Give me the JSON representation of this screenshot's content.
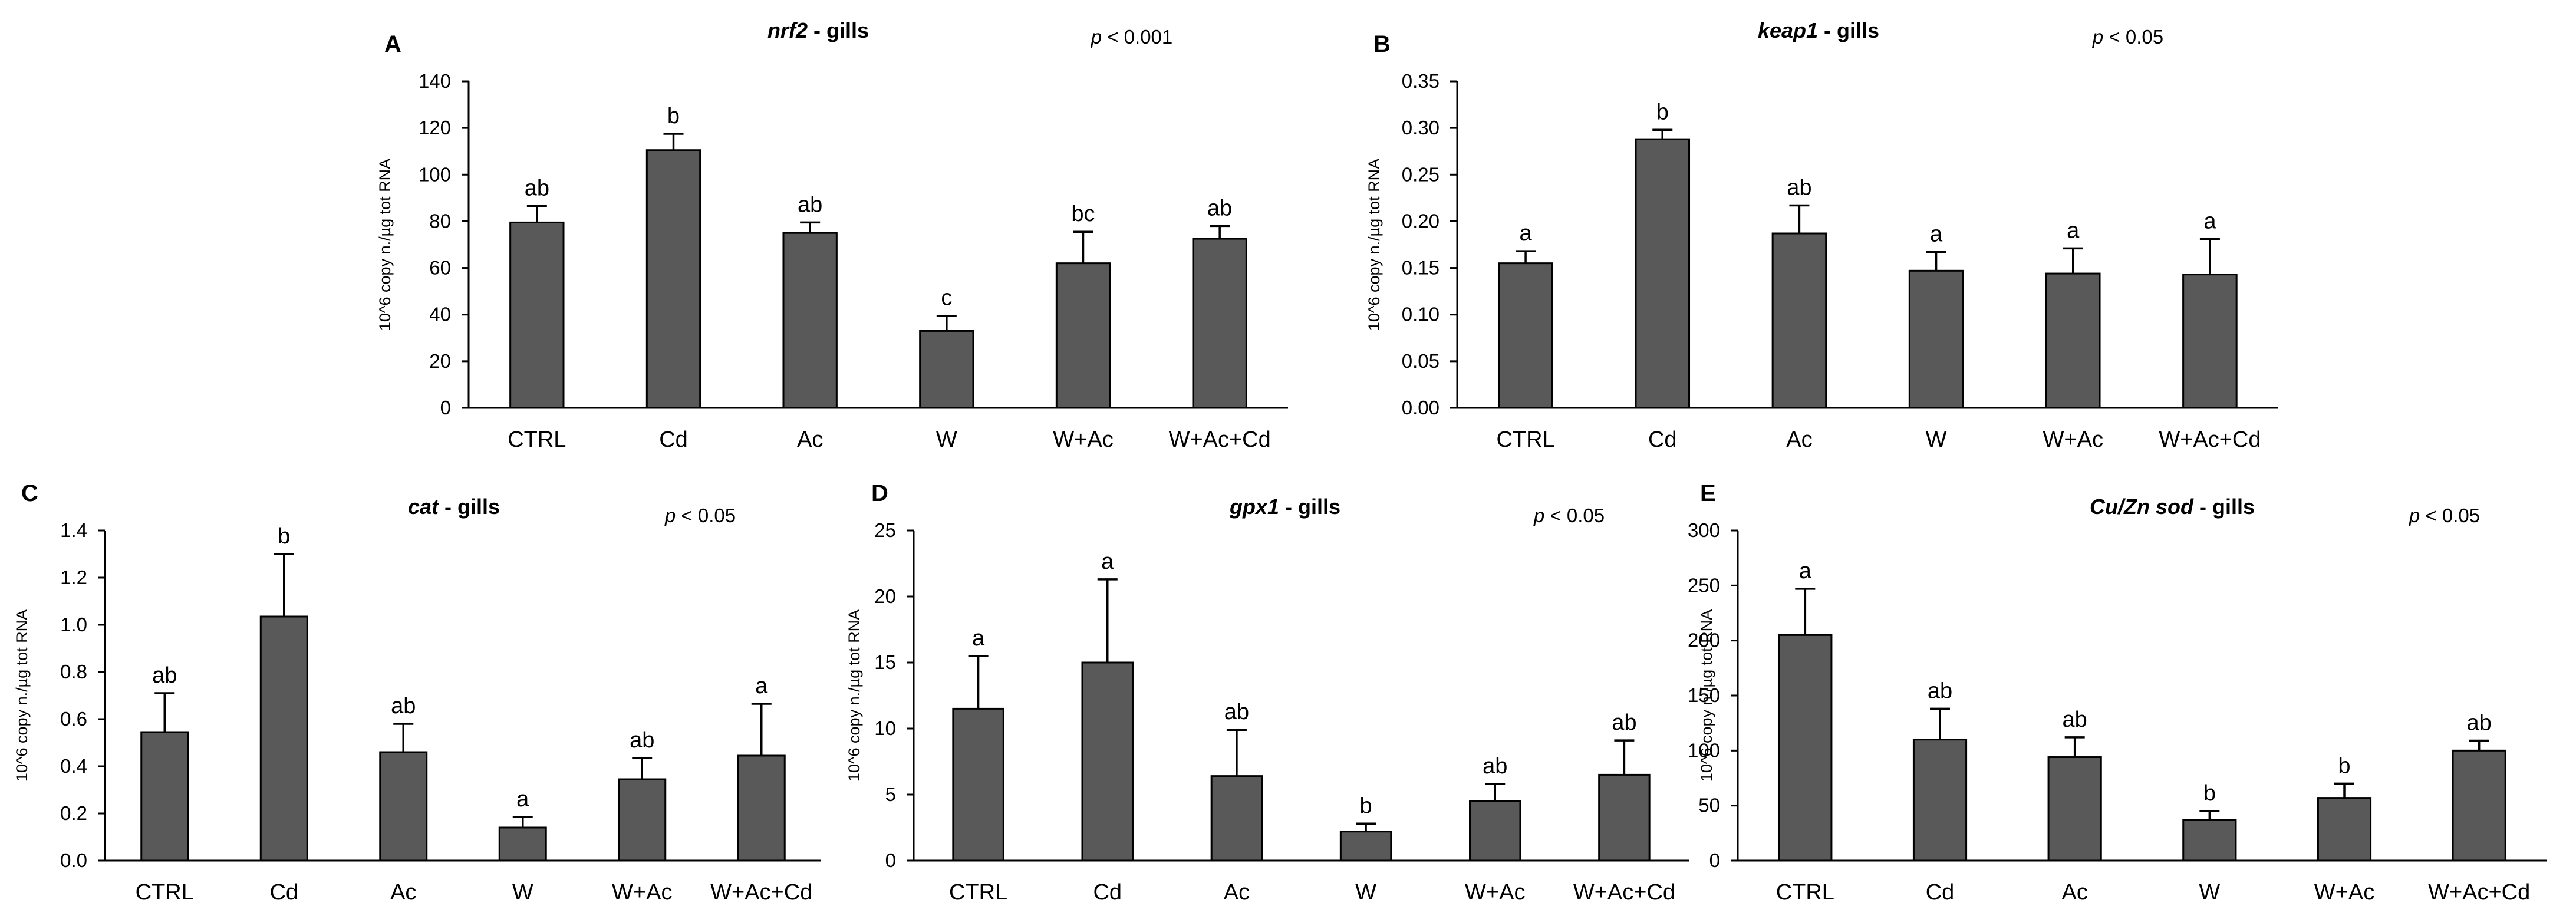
{
  "colors": {
    "bar": "#595959",
    "axis": "#000000",
    "background": "#ffffff"
  },
  "chart_data": [
    {
      "panel": "A",
      "type": "bar",
      "title_gene": "nrf2",
      "title_suffix": " - gills",
      "p_symbol": "p",
      "p_text": " < 0.001",
      "ylabel": "10^6 copy n./µg tot RNA",
      "ylim": [
        0,
        140
      ],
      "yticks": [
        "0",
        "20",
        "40",
        "60",
        "80",
        "100",
        "120",
        "140"
      ],
      "categories": [
        "CTRL",
        "Cd",
        "Ac",
        "W",
        "W+Ac",
        "W+Ac+Cd"
      ],
      "values": [
        79.5,
        110.5,
        75,
        33,
        62,
        72.5
      ],
      "errors": [
        7,
        7,
        4.5,
        6.5,
        13.5,
        5.5
      ],
      "labels": [
        "ab",
        "b",
        "ab",
        "c",
        "bc",
        "ab"
      ]
    },
    {
      "panel": "B",
      "type": "bar",
      "title_gene": "keap1",
      "title_suffix": " - gills",
      "p_symbol": "p",
      "p_text": " < 0.05",
      "ylabel": "10^6 copy n./µg tot RNA",
      "ylim": [
        0,
        0.35
      ],
      "yticks": [
        "0.00",
        "0.05",
        "0.10",
        "0.15",
        "0.20",
        "0.25",
        "0.30",
        "0.35"
      ],
      "categories": [
        "CTRL",
        "Cd",
        "Ac",
        "W",
        "W+Ac",
        "W+Ac+Cd"
      ],
      "values": [
        0.155,
        0.288,
        0.187,
        0.147,
        0.144,
        0.143
      ],
      "errors": [
        0.013,
        0.01,
        0.03,
        0.02,
        0.027,
        0.038
      ],
      "labels": [
        "a",
        "b",
        "ab",
        "a",
        "a",
        "a"
      ]
    },
    {
      "panel": "C",
      "type": "bar",
      "title_gene": "cat",
      "title_suffix": " - gills",
      "p_symbol": "p",
      "p_text": " < 0.05",
      "ylabel": "10^6 copy n./µg tot RNA",
      "ylim": [
        0,
        1.4
      ],
      "yticks": [
        "0.0",
        "0.2",
        "0.4",
        "0.6",
        "0.8",
        "1.0",
        "1.2",
        "1.4"
      ],
      "categories": [
        "CTRL",
        "Cd",
        "Ac",
        "W",
        "W+Ac",
        "W+Ac+Cd"
      ],
      "values": [
        0.545,
        1.035,
        0.46,
        0.14,
        0.345,
        0.445
      ],
      "errors": [
        0.165,
        0.265,
        0.12,
        0.045,
        0.09,
        0.22
      ],
      "labels": [
        "ab",
        "b",
        "ab",
        "a",
        "ab",
        "a"
      ]
    },
    {
      "panel": "D",
      "type": "bar",
      "title_gene": "gpx1",
      "title_suffix": " - gills",
      "p_symbol": "p",
      "p_text": " < 0.05",
      "ylabel": "10^6 copy n./µg tot RNA",
      "ylim": [
        0,
        25
      ],
      "yticks": [
        "0",
        "5",
        "10",
        "15",
        "20",
        "25"
      ],
      "categories": [
        "CTRL",
        "Cd",
        "Ac",
        "W",
        "W+Ac",
        "W+Ac+Cd"
      ],
      "values": [
        11.5,
        15,
        6.4,
        2.2,
        4.5,
        6.5
      ],
      "errors": [
        4,
        6.3,
        3.5,
        0.6,
        1.3,
        2.6
      ],
      "labels": [
        "a",
        "a",
        "ab",
        "b",
        "ab",
        "ab"
      ]
    },
    {
      "panel": "E",
      "type": "bar",
      "title_gene": "Cu/Zn sod",
      "title_suffix": " - gills",
      "p_symbol": "p",
      "p_text": " < 0.05",
      "ylabel": "10^6 copy n./µg tot RNA",
      "ylim": [
        0,
        300
      ],
      "yticks": [
        "0",
        "50",
        "100",
        "150",
        "200",
        "250",
        "300"
      ],
      "categories": [
        "CTRL",
        "Cd",
        "Ac",
        "W",
        "W+Ac",
        "W+Ac+Cd"
      ],
      "values": [
        205,
        110,
        94,
        37,
        57,
        100
      ],
      "errors": [
        42,
        28,
        18,
        8,
        13,
        9
      ],
      "labels": [
        "a",
        "ab",
        "ab",
        "b",
        "b",
        "ab"
      ]
    }
  ]
}
